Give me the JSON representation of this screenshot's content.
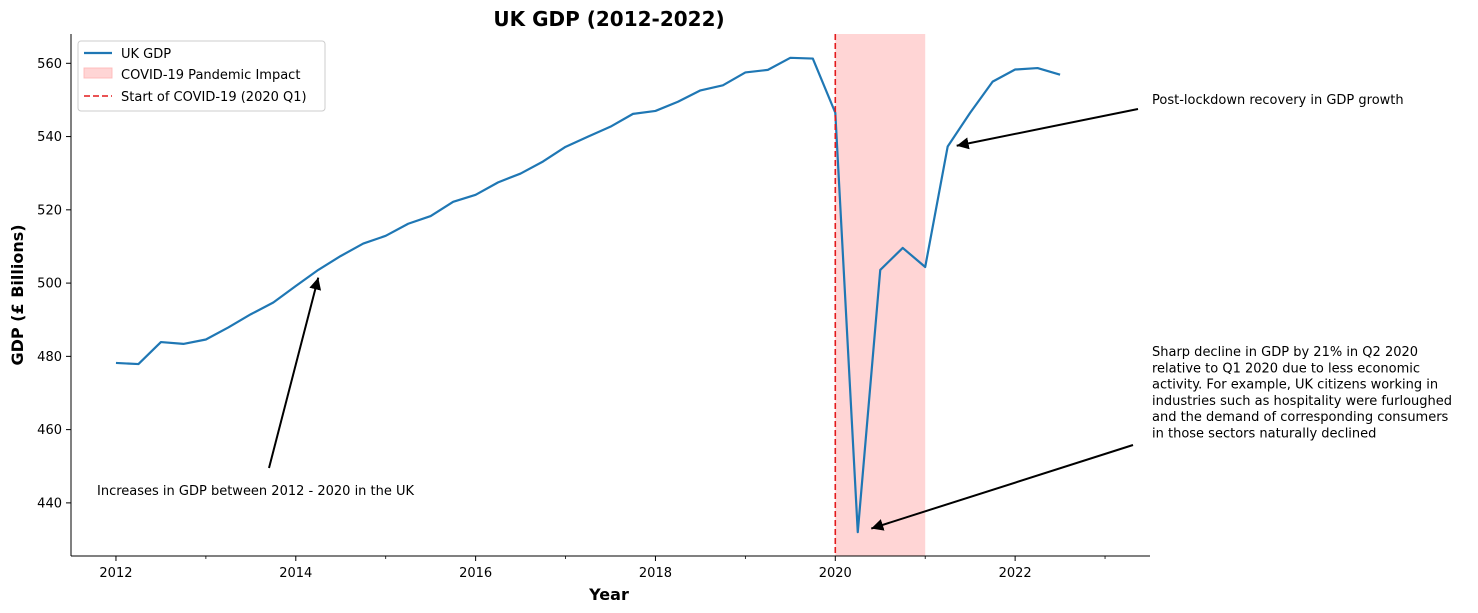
{
  "chart_data": {
    "type": "line",
    "title": "UK GDP (2012-2022)",
    "xlabel": "Year",
    "ylabel": "GDP (£ Billions)",
    "xlim": [
      2011.5,
      2023.5
    ],
    "ylim": [
      425.5,
      568
    ],
    "xticks": [
      2012,
      2014,
      2016,
      2018,
      2020,
      2022
    ],
    "yticks": [
      440,
      460,
      480,
      500,
      520,
      540,
      560
    ],
    "grid": false,
    "legend_position": "top-left",
    "legend": {
      "series": "UK GDP",
      "span": "COVID-19 Pandemic Impact",
      "vline": "Start of COVID-19 (2020 Q1)"
    },
    "series": [
      {
        "name": "UK GDP",
        "color": "#1f77b4",
        "x": [
          2012,
          2012.25,
          2012.5,
          2012.75,
          2013,
          2013.25,
          2013.5,
          2013.75,
          2014,
          2014.25,
          2014.5,
          2014.75,
          2015,
          2015.25,
          2015.5,
          2015.75,
          2016,
          2016.25,
          2016.5,
          2016.75,
          2017,
          2017.25,
          2017.5,
          2017.75,
          2018,
          2018.25,
          2018.5,
          2018.75,
          2019,
          2019.25,
          2019.5,
          2019.75,
          2020,
          2020.25,
          2020.5,
          2020.75,
          2021,
          2021.25,
          2021.5,
          2021.75,
          2022,
          2022.25,
          2022.5
        ],
        "y": [
          478.2,
          477.9,
          483.9,
          483.4,
          484.6,
          487.9,
          491.5,
          494.7,
          499.2,
          503.6,
          507.4,
          510.8,
          512.9,
          516.2,
          518.3,
          522.2,
          524.1,
          527.5,
          529.9,
          533.2,
          537.2,
          540.0,
          542.7,
          546.2,
          547.0,
          549.5,
          552.6,
          554.0,
          557.5,
          558.2,
          561.5,
          561.3,
          546.5,
          432.0,
          503.6,
          509.6,
          504.4,
          537.3,
          546.5,
          555.0,
          558.3,
          558.7,
          556.9
        ]
      }
    ],
    "span": {
      "x0": 2020,
      "x1": 2021,
      "color": "#ffb3b3"
    },
    "vline": {
      "x": 2020,
      "color": "#e31a1c"
    },
    "annotations": [
      {
        "text": [
          "Increases in GDP between 2012 - 2020 in the UK"
        ],
        "point": [
          2014.25,
          501.5
        ],
        "text_at": [
          2011.8,
          442.5
        ]
      },
      {
        "text": [
          "Post-lockdown recovery in GDP growth"
        ],
        "point": [
          2021.35,
          537.5
        ],
        "text_at": [
          2023.5,
          549
        ]
      },
      {
        "text": [
          "Sharp decline in GDP by 21% in Q2 2020",
          "relative to Q1 2020 due to less economic",
          "activity. For example, UK citizens working in",
          "industries such as hospitality were furloughed",
          "and the demand of corresponding consumers",
          "in those sectors naturally declined"
        ],
        "point": [
          2020.4,
          433
        ],
        "text_at": [
          2023.5,
          481
        ]
      }
    ]
  }
}
